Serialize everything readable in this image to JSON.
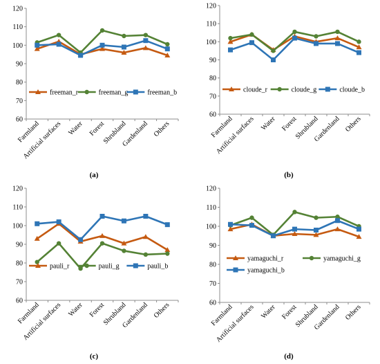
{
  "panels": [
    {
      "caption": "(a)",
      "chart_data": {
        "type": "line",
        "categories": [
          "Farmland",
          "Artificial surfaces",
          "Water",
          "Forest",
          "Shrubland",
          "Gardenland",
          "Others"
        ],
        "ylim": [
          60,
          120
        ],
        "yticks": [
          "60",
          "70",
          "80",
          "90",
          "100",
          "110",
          "120"
        ],
        "grid": false,
        "legend": "bottom, single row",
        "series": [
          {
            "name": "freeman_r",
            "color": "#C55A11",
            "marker": "triangle",
            "values": [
              98,
              102,
              95,
              98,
              96,
              98.5,
              94.5
            ]
          },
          {
            "name": "freeman_g",
            "color": "#548235",
            "marker": "circle",
            "values": [
              101.5,
              105.5,
              96,
              108,
              105,
              105.5,
              100.5
            ]
          },
          {
            "name": "freeman_b",
            "color": "#2E75B6",
            "marker": "square",
            "values": [
              100,
              100.5,
              94.5,
              100,
              99,
              102.5,
              98
            ]
          }
        ]
      }
    },
    {
      "caption": "(b)",
      "chart_data": {
        "type": "line",
        "categories": [
          "Farmland",
          "Artificial surfaces",
          "Water",
          "Forest",
          "Shrubland",
          "Gardenland",
          "Others"
        ],
        "ylim": [
          60,
          120
        ],
        "yticks": [
          "60",
          "70",
          "80",
          "90",
          "100",
          "110",
          "120"
        ],
        "grid": false,
        "legend": "bottom, single row",
        "series": [
          {
            "name": "cloude_r",
            "color": "#C55A11",
            "marker": "triangle",
            "values": [
              100,
              104,
              95.5,
              103,
              100,
              102,
              97
            ]
          },
          {
            "name": "cloude_g",
            "color": "#548235",
            "marker": "circle",
            "values": [
              102,
              104,
              95,
              105.5,
              103,
              105.5,
              100
            ]
          },
          {
            "name": "cloude_b",
            "color": "#2E75B6",
            "marker": "square",
            "values": [
              95.5,
              99.5,
              90,
              102,
              99,
              99,
              94
            ]
          }
        ]
      }
    },
    {
      "caption": "(c)",
      "chart_data": {
        "type": "line",
        "categories": [
          "Farmland",
          "Artificial surfaces",
          "Water",
          "Forest",
          "Shrubland",
          "Gardenland",
          "Others"
        ],
        "ylim": [
          60,
          120
        ],
        "yticks": [
          "60",
          "70",
          "80",
          "90",
          "100",
          "110",
          "120"
        ],
        "grid": false,
        "legend": "bottom, single row",
        "series": [
          {
            "name": "pauli_r",
            "color": "#C55A11",
            "marker": "triangle",
            "values": [
              93,
              101,
              91.5,
              94.5,
              90.5,
              94,
              87
            ]
          },
          {
            "name": "pauli_g",
            "color": "#548235",
            "marker": "circle",
            "values": [
              80.5,
              90.5,
              77,
              90.5,
              86.5,
              84.5,
              85
            ]
          },
          {
            "name": "pauli_b",
            "color": "#2E75B6",
            "marker": "square",
            "values": [
              101,
              102,
              92.5,
              105,
              102.5,
              105,
              100.5
            ]
          }
        ]
      }
    },
    {
      "caption": "(d)",
      "chart_data": {
        "type": "line",
        "categories": [
          "Farmland",
          "Artificial surfaces",
          "Water",
          "Forest",
          "Shrubland",
          "Gardenland",
          "Others"
        ],
        "ylim": [
          60,
          120
        ],
        "yticks": [
          "60",
          "70",
          "80",
          "90",
          "100",
          "110",
          "120"
        ],
        "grid": false,
        "legend": "bottom, two rows",
        "series": [
          {
            "name": "yamaguchi_r",
            "color": "#C55A11",
            "marker": "triangle",
            "values": [
              98.5,
              101,
              95,
              96,
              95.5,
              98.5,
              94.5
            ]
          },
          {
            "name": "yamaguchi_g",
            "color": "#548235",
            "marker": "circle",
            "values": [
              100.5,
              104.5,
              95.5,
              107.5,
              104.5,
              105,
              100
            ]
          },
          {
            "name": "yamaguchi_b",
            "color": "#2E75B6",
            "marker": "square",
            "values": [
              101,
              100.5,
              95,
              98.5,
              98,
              103,
              98.5
            ]
          }
        ]
      }
    }
  ]
}
